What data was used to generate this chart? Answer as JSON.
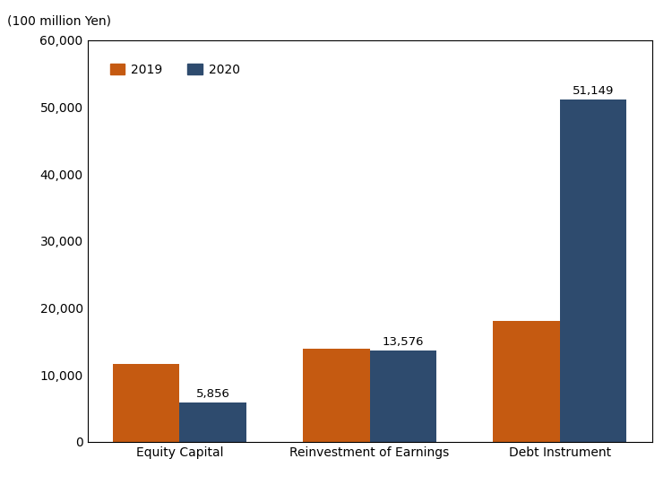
{
  "categories": [
    "Equity Capital",
    "Reinvestment of Earnings",
    "Debt Instrument"
  ],
  "values_2019": [
    11665,
    13935,
    18029
  ],
  "values_2020": [
    5856,
    13576,
    51149
  ],
  "labels_2020": [
    "5,856",
    "13,576",
    "51,149"
  ],
  "color_2019": "#C55A11",
  "color_2020": "#2E4B6E",
  "legend_labels": [
    "2019",
    "2020"
  ],
  "ylabel": "(100 million Yen)",
  "ylim": [
    0,
    60000
  ],
  "yticks": [
    0,
    10000,
    20000,
    30000,
    40000,
    50000,
    60000
  ],
  "ytick_labels": [
    "0",
    "10,000",
    "20,000",
    "30,000",
    "40,000",
    "50,000",
    "60,000"
  ],
  "bar_width": 0.35,
  "annotate_fontsize": 9.5,
  "tick_fontsize": 10,
  "legend_fontsize": 10
}
